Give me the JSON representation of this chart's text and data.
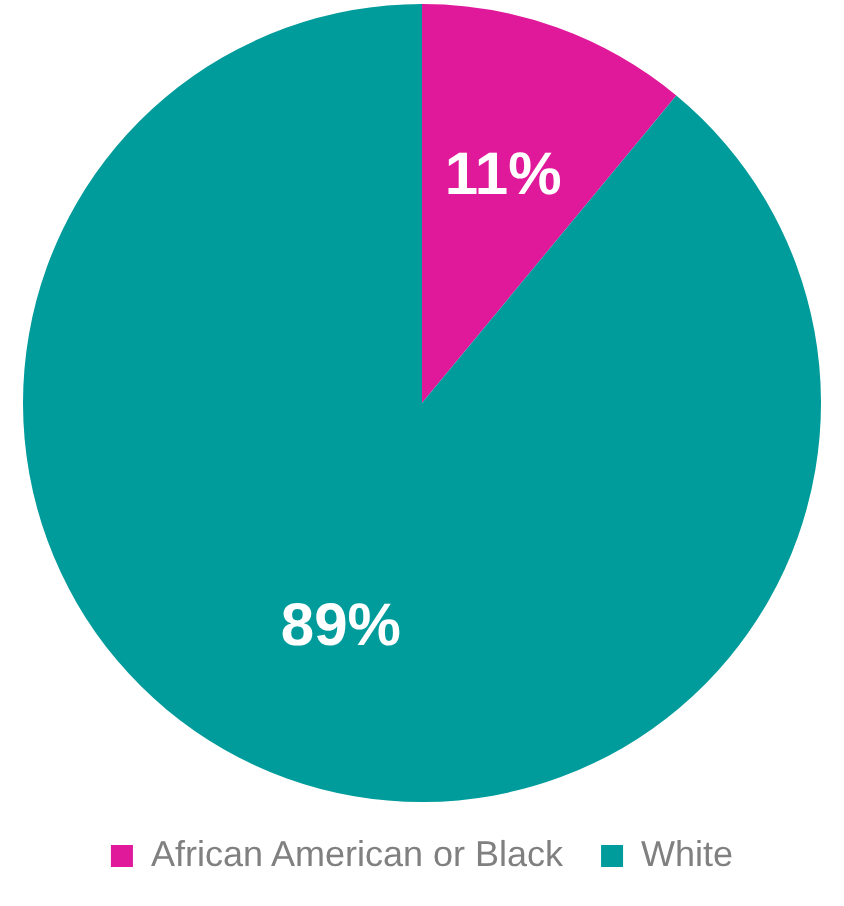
{
  "chart_data": {
    "type": "pie",
    "categories": [
      "African American or Black",
      "White"
    ],
    "values": [
      11,
      89
    ],
    "colors": [
      "#e0189a",
      "#009b9b"
    ],
    "value_labels": [
      "11%",
      "89%"
    ],
    "legend": "bottom"
  }
}
